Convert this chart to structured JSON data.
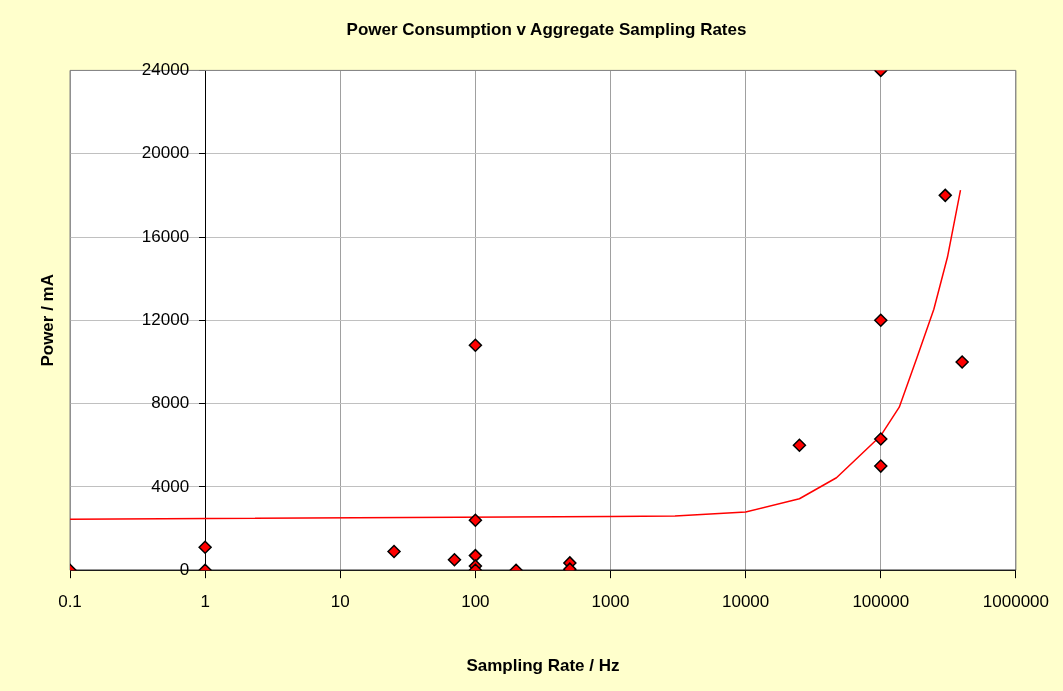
{
  "chart_data": {
    "type": "scatter",
    "title": "Power Consumption v Aggregate Sampling Rates",
    "xlabel": "Sampling Rate / Hz",
    "ylabel": "Power / mA",
    "log": "x",
    "xlim": [
      0.1,
      1000000
    ],
    "xticks": [
      0.1,
      1,
      10,
      100,
      1000,
      10000,
      100000,
      1000000
    ],
    "ylim": [
      0,
      24000
    ],
    "yticks": [
      0,
      4000,
      8000,
      12000,
      16000,
      20000,
      24000
    ],
    "grid": true,
    "legend": false,
    "series": [
      {
        "type": "scatter",
        "color": "#ff0000",
        "marker": "diamond",
        "x": [
          0.1,
          1,
          1,
          25,
          70,
          100,
          100,
          100,
          100,
          100,
          200,
          500,
          500,
          25000,
          100000,
          100000,
          100000,
          100000,
          300000,
          400000
        ],
        "values": [
          0,
          1100,
          0,
          900,
          500,
          10800,
          2400,
          700,
          200,
          0,
          0,
          350,
          50,
          6000,
          24000,
          12000,
          6300,
          5000,
          18000,
          10000
        ]
      },
      {
        "type": "line",
        "color": "#ff0000",
        "marker": "none",
        "line_style": "solid",
        "x": [
          0.1,
          1000,
          3000,
          10000,
          25000,
          47000,
          100000,
          137000,
          184000,
          247000,
          312000,
          389000
        ],
        "values": [
          2450,
          2580,
          2600,
          2790,
          3430,
          4440,
          6460,
          7830,
          10150,
          12530,
          15050,
          18250
        ]
      }
    ]
  }
}
